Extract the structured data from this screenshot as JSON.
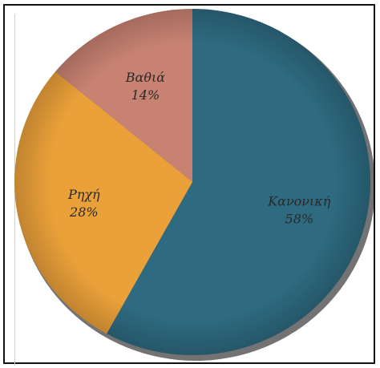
{
  "chart_data": {
    "type": "pie",
    "title": "",
    "start_angle_deg": 0,
    "direction": "clockwise",
    "slices": [
      {
        "label": "Κανονική",
        "value": 58,
        "value_label": "58%",
        "color": "#2e6a80"
      },
      {
        "label": "Ρηχή",
        "value": 28,
        "value_label": "28%",
        "color": "#eba13a"
      },
      {
        "label": "Βαθιά",
        "value": 14,
        "value_label": "14%",
        "color": "#c88272"
      }
    ],
    "legend": "none",
    "grid": false
  }
}
